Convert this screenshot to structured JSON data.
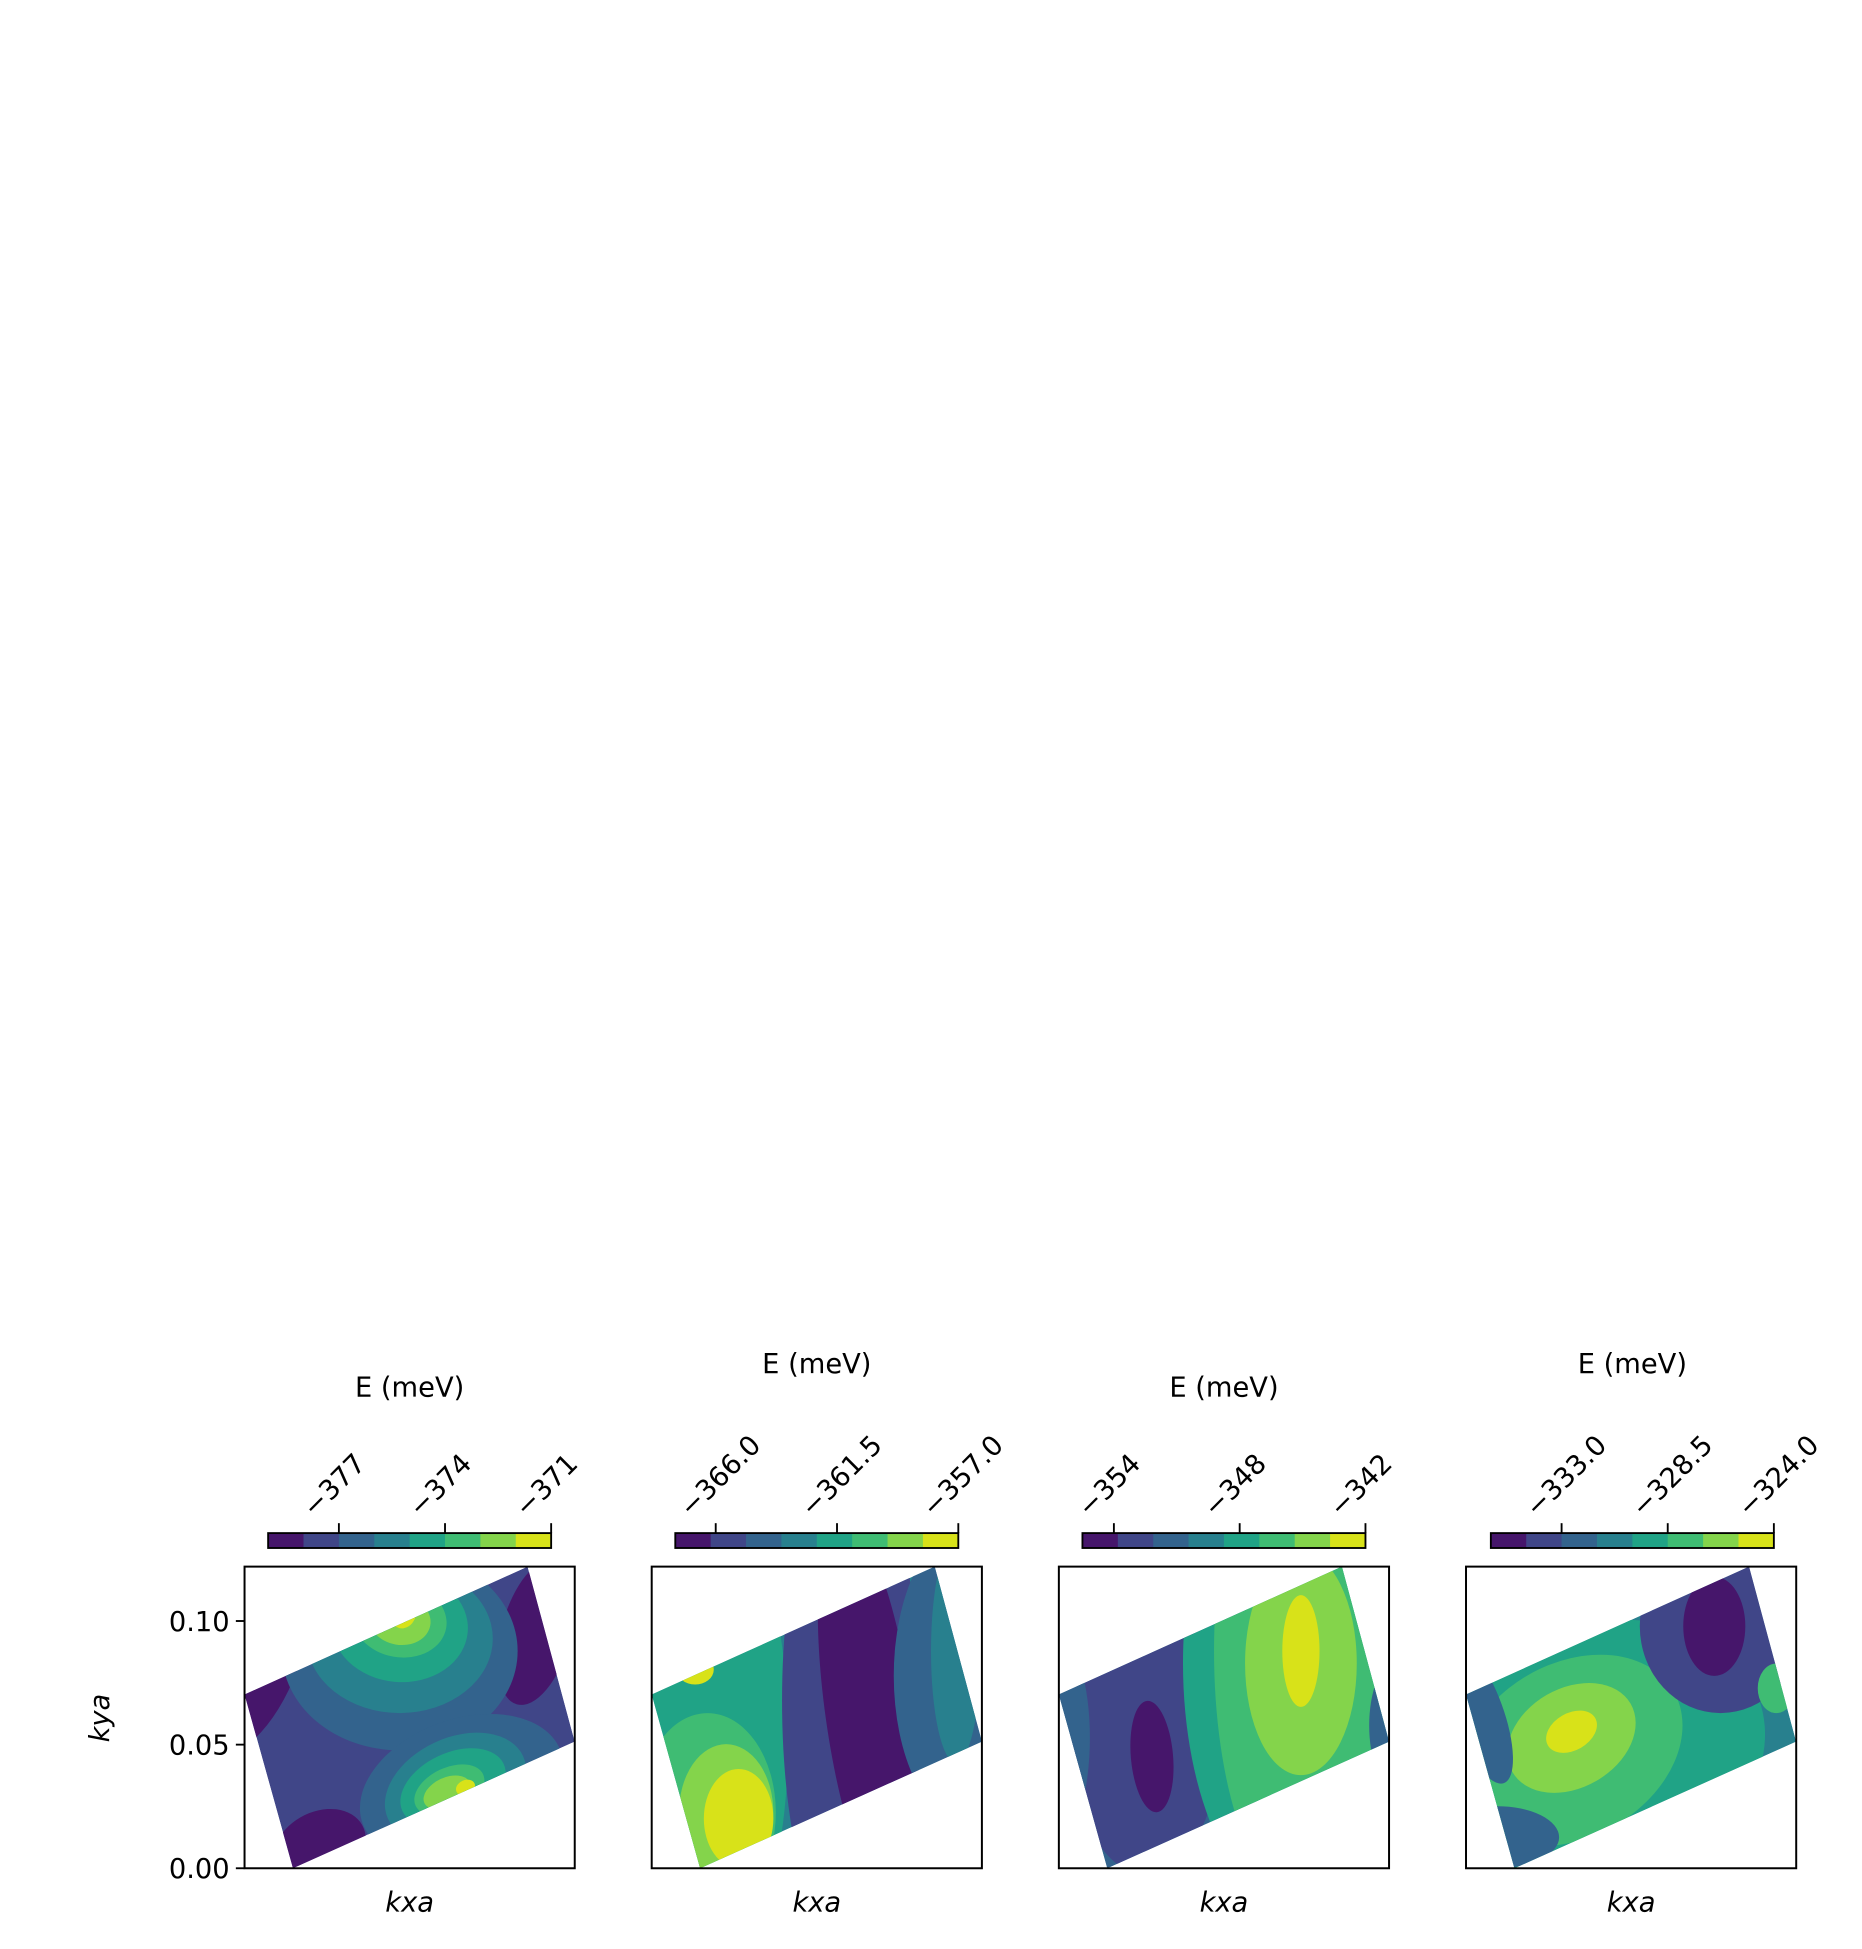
{
  "chart_data": [
    {
      "type": "contour",
      "cbar_label": "E (meV)",
      "xlabel": "kxa",
      "ylabel": "kya",
      "ylim": [
        0,
        0.122
      ],
      "yticks": [
        {
          "value": 0,
          "label": "0.00"
        },
        {
          "value": 0.05,
          "label": "0.05"
        },
        {
          "value": 0.1,
          "label": "0.10"
        }
      ],
      "clim": [
        -379,
        -371
      ],
      "cticks": [
        {
          "value": -377,
          "label": "−377"
        },
        {
          "value": -374,
          "label": "−374"
        },
        {
          "value": -371,
          "label": "−371"
        }
      ],
      "colors": [
        "#46166b",
        "#404688",
        "#33638d",
        "#28808e",
        "#20a386",
        "#3fbc73",
        "#84d44b",
        "#d8e219"
      ]
    },
    {
      "type": "contour",
      "cbar_label": "E (meV)",
      "xlabel": "kxa",
      "clim": [
        -367.5,
        -357
      ],
      "cticks": [
        {
          "value": -366,
          "label": "−366.0"
        },
        {
          "value": -361.5,
          "label": "−361.5"
        },
        {
          "value": -357,
          "label": "−357.0"
        }
      ],
      "colors": [
        "#46166b",
        "#404688",
        "#33638d",
        "#28808e",
        "#20a386",
        "#3fbc73",
        "#84d44b",
        "#d8e219"
      ]
    },
    {
      "type": "contour",
      "cbar_label": "E (meV)",
      "xlabel": "kxa",
      "clim": [
        -355.5,
        -342
      ],
      "cticks": [
        {
          "value": -354,
          "label": "−354"
        },
        {
          "value": -348,
          "label": "−348"
        },
        {
          "value": -342,
          "label": "−342"
        }
      ],
      "colors": [
        "#46166b",
        "#404688",
        "#33638d",
        "#28808e",
        "#20a386",
        "#3fbc73",
        "#84d44b",
        "#d8e219"
      ]
    },
    {
      "type": "contour",
      "cbar_label": "E (meV)",
      "xlabel": "kxa",
      "clim": [
        -336,
        -324
      ],
      "cticks": [
        {
          "value": -333,
          "label": "−333.0"
        },
        {
          "value": -328.5,
          "label": "−328.5"
        },
        {
          "value": -324,
          "label": "−324.0"
        }
      ],
      "colors": [
        "#46166b",
        "#404688",
        "#33638d",
        "#28808e",
        "#20a386",
        "#3fbc73",
        "#84d44b",
        "#d8e219"
      ]
    }
  ]
}
